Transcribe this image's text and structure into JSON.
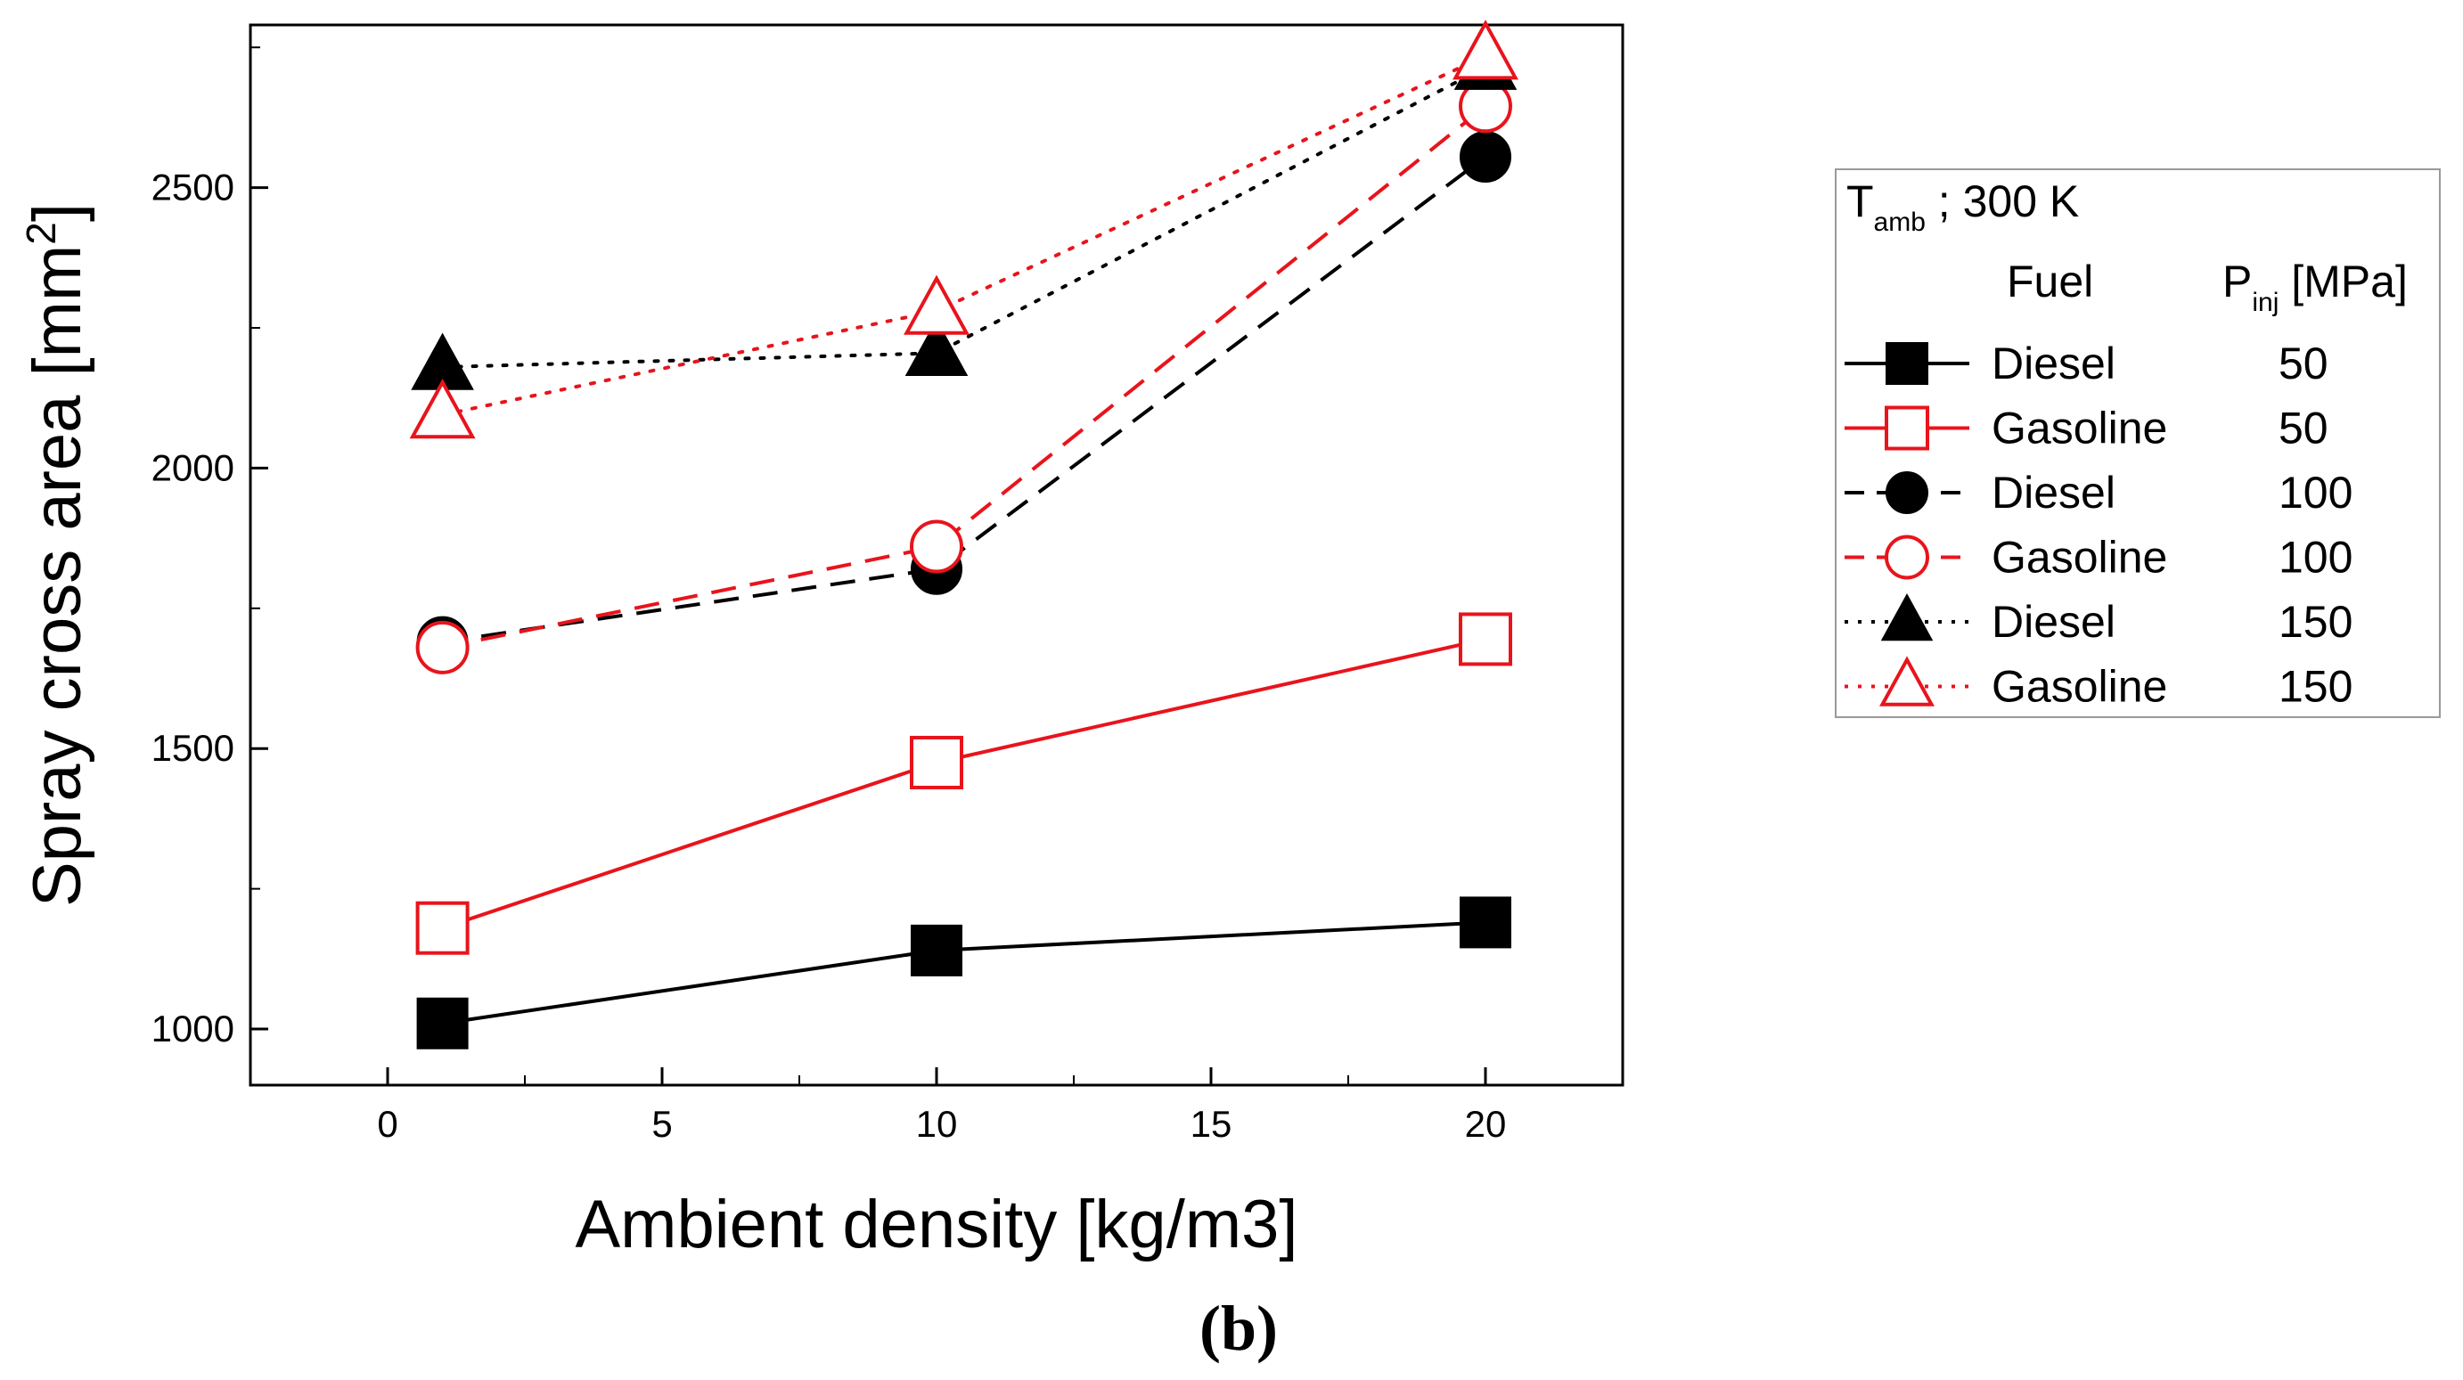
{
  "chart_data": {
    "type": "line",
    "xlabel": "Ambient density [kg/m3]",
    "ylabel_main": "Spray cross area [mm",
    "ylabel_sup": "2",
    "ylabel_end": "]",
    "xlim": [
      -2.5,
      22.5
    ],
    "ylim": [
      900,
      2790
    ],
    "x_ticks": [
      0,
      5,
      10,
      15,
      20
    ],
    "y_ticks": [
      1000,
      1500,
      2000,
      2500
    ],
    "x": [
      1,
      10,
      20
    ],
    "series": [
      {
        "name": "Diesel",
        "pinj": "50",
        "color": "#000000",
        "marker": "square",
        "filled": true,
        "dash": "solid",
        "values": [
          1010,
          1140,
          1190
        ]
      },
      {
        "name": "Gasoline",
        "pinj": "50",
        "color": "#e8141c",
        "marker": "square",
        "filled": false,
        "dash": "solid",
        "values": [
          1180,
          1475,
          1695
        ]
      },
      {
        "name": "Diesel",
        "pinj": "100",
        "color": "#000000",
        "marker": "circle",
        "filled": true,
        "dash": "dashed",
        "values": [
          1690,
          1820,
          2555
        ]
      },
      {
        "name": "Gasoline",
        "pinj": "100",
        "color": "#e8141c",
        "marker": "circle",
        "filled": false,
        "dash": "dashed",
        "values": [
          1680,
          1860,
          2645
        ]
      },
      {
        "name": "Diesel",
        "pinj": "150",
        "color": "#000000",
        "marker": "triangle",
        "filled": true,
        "dash": "dotted",
        "values": [
          2180,
          2205,
          2715
        ]
      },
      {
        "name": "Gasoline",
        "pinj": "150",
        "color": "#e8141c",
        "marker": "triangle",
        "filled": false,
        "dash": "dotted",
        "values": [
          2095,
          2280,
          2735
        ]
      }
    ],
    "legend": {
      "placement": "right",
      "title_main": "T",
      "title_sub": "amb",
      "title_rest": " ; 300 K",
      "fuel_header": "Fuel",
      "pinj_main": "P",
      "pinj_sub": "inj",
      "pinj_rest": " [MPa]"
    },
    "caption": "(b)"
  }
}
